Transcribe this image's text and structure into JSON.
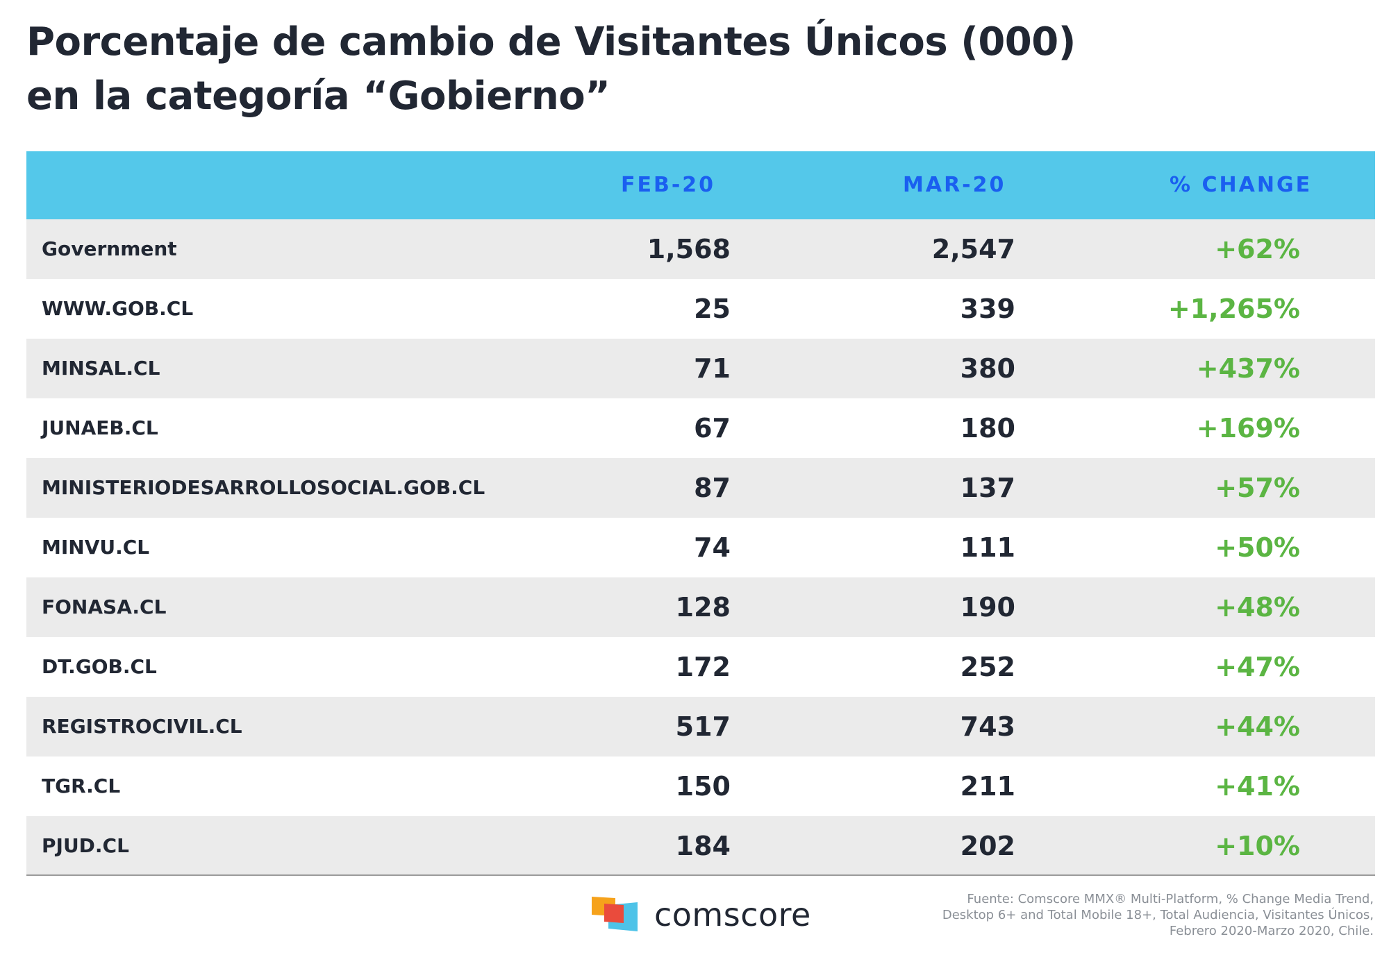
{
  "title": {
    "line1": "Porcentaje de cambio de Visitantes Únicos (000)",
    "line2": "en la categoría “Gobierno”"
  },
  "chart_data": {
    "type": "table",
    "columns": [
      "",
      "FEB-20",
      "MAR-20",
      "% CHANGE"
    ],
    "rows": [
      {
        "name": "Government",
        "feb": "1,568",
        "mar": "2,547",
        "change": "+62%"
      },
      {
        "name": "WWW.GOB.CL",
        "feb": "25",
        "mar": "339",
        "change": "+1,265%"
      },
      {
        "name": "MINSAL.CL",
        "feb": "71",
        "mar": "380",
        "change": "+437%"
      },
      {
        "name": "JUNAEB.CL",
        "feb": "67",
        "mar": "180",
        "change": "+169%"
      },
      {
        "name": "MINISTERIODESARROLLOSOCIAL.GOB.CL",
        "feb": "87",
        "mar": "137",
        "change": "+57%"
      },
      {
        "name": "MINVU.CL",
        "feb": "74",
        "mar": "111",
        "change": "+50%"
      },
      {
        "name": "FONASA.CL",
        "feb": "128",
        "mar": "190",
        "change": "+48%"
      },
      {
        "name": "DT.GOB.CL",
        "feb": "172",
        "mar": "252",
        "change": "+47%"
      },
      {
        "name": "REGISTROCIVIL.CL",
        "feb": "517",
        "mar": "743",
        "change": "+44%"
      },
      {
        "name": "TGR.CL",
        "feb": "150",
        "mar": "211",
        "change": "+41%"
      },
      {
        "name": "PJUD.CL",
        "feb": "184",
        "mar": "202",
        "change": "+10%"
      }
    ]
  },
  "colors": {
    "header_bg": "#54c8ea",
    "header_text": "#1a5ff0",
    "positive_change": "#5bb543",
    "row_alt": "#ebebeb",
    "text": "#212733"
  },
  "logo": {
    "text": "comscore"
  },
  "source": {
    "line1": "Fuente: Comscore MMX® Multi-Platform, % Change Media Trend,",
    "line2": "Desktop 6+ and Total Mobile 18+, Total Audiencia, Visitantes Únicos,",
    "line3": "Febrero 2020-Marzo 2020, Chile."
  }
}
